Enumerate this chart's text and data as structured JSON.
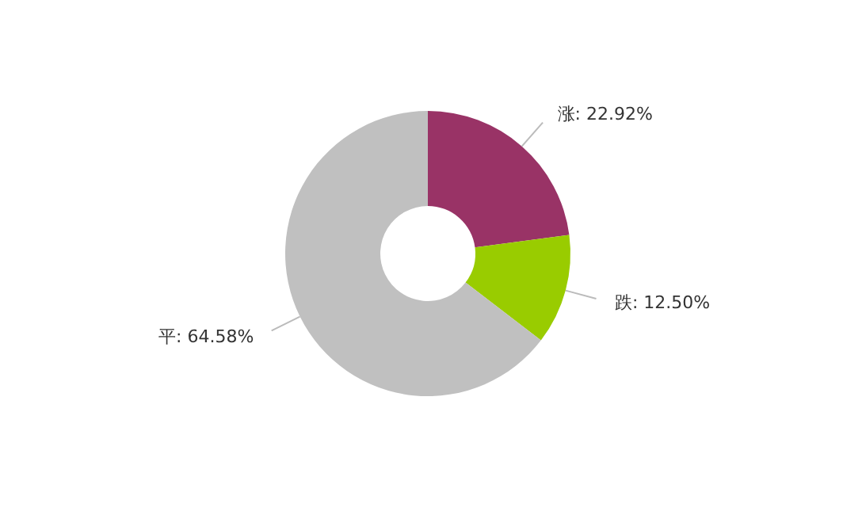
{
  "chart_data": {
    "type": "donut",
    "categories": [
      "涨",
      "跌",
      "平"
    ],
    "values": [
      22.92,
      12.5,
      64.58
    ],
    "colors": [
      "#993366",
      "#99cc00",
      "#c0c0c0"
    ],
    "value_labels": [
      ": 22.92%",
      ": 12.50%",
      ": 64.58%"
    ],
    "legend": false
  }
}
